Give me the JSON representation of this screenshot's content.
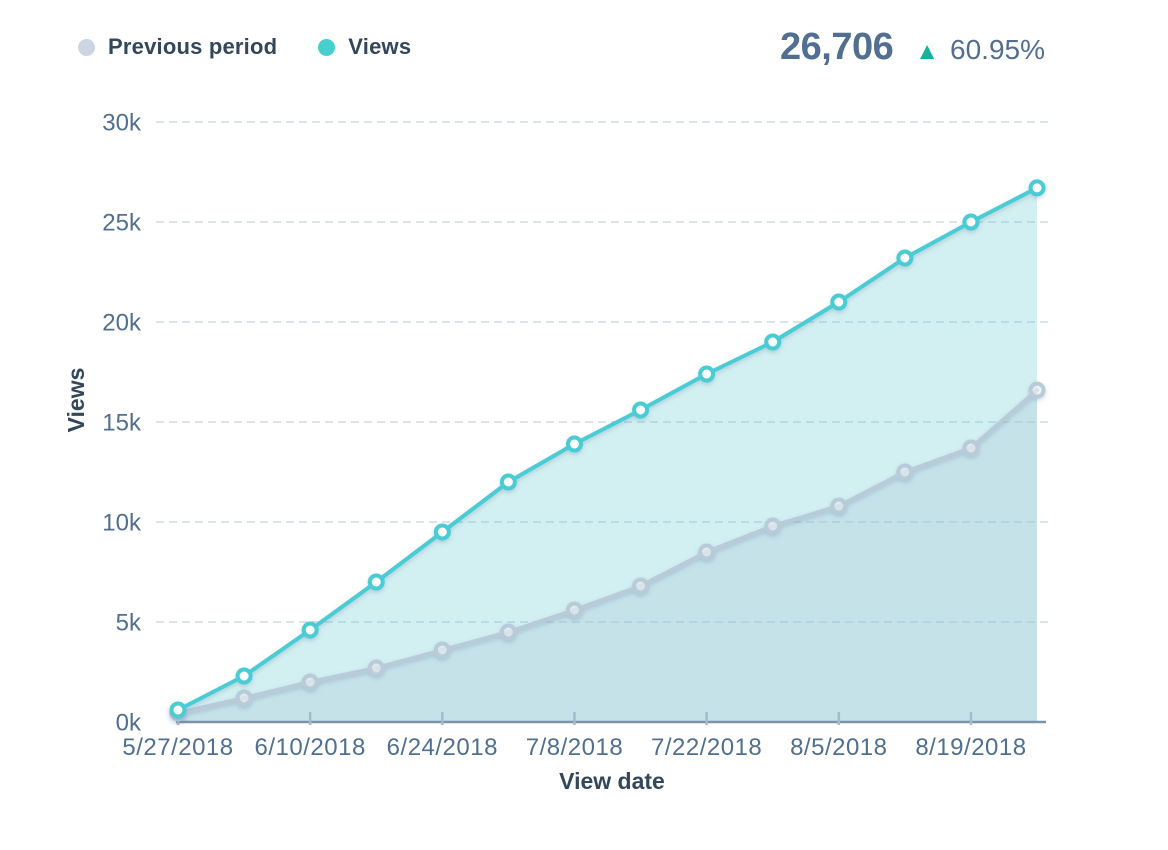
{
  "header": {
    "legend": {
      "items": [
        {
          "label": "Previous period",
          "color": "#cbd6e2"
        },
        {
          "label": "Views",
          "color": "#45cfcf"
        }
      ]
    },
    "stats": {
      "total": "26,706",
      "delta_icon_glyph": "▲",
      "delta": "60.95%"
    }
  },
  "colors": {
    "axis_line": "#7d93ac",
    "tick": "#a4bad0",
    "grid": "#dbe3ec",
    "tick_label": "#516f90",
    "axis_title": "#33475b",
    "legend_text": "#33475b",
    "total_text": "#516f90",
    "delta_text": "#516f90",
    "delta_icon": "#14b29a"
  },
  "chart_data": {
    "type": "area",
    "title": "",
    "xlabel": "View date",
    "ylabel": "Views",
    "x": [
      "5/27/2018",
      "6/3/2018",
      "6/10/2018",
      "6/17/2018",
      "6/24/2018",
      "7/1/2018",
      "7/8/2018",
      "7/15/2018",
      "7/22/2018",
      "7/29/2018",
      "8/5/2018",
      "8/12/2018",
      "8/19/2018",
      "8/26/2018"
    ],
    "x_tick_labels": [
      "5/27/2018",
      "6/10/2018",
      "6/24/2018",
      "7/8/2018",
      "7/22/2018",
      "8/5/2018",
      "8/19/2018"
    ],
    "y_tick_values": [
      0,
      5000,
      10000,
      15000,
      20000,
      25000,
      30000
    ],
    "y_tick_labels": [
      "0k",
      "5k",
      "10k",
      "15k",
      "20k",
      "25k",
      "30k"
    ],
    "ylim": [
      0,
      30000
    ],
    "grid": "horizontal-dashed",
    "legend_position": "top-left",
    "summary": {
      "latest_total": 26706,
      "change_percent": 60.95
    },
    "series": [
      {
        "name": "Previous period",
        "color": "#b8cbd8",
        "area_fill": "rgba(170,200,215,0.32)",
        "marker_fill": "rgba(255,255,255,0.45)",
        "values": [
          450,
          1200,
          2000,
          2700,
          3600,
          4500,
          5600,
          6800,
          8500,
          9800,
          10800,
          12500,
          13700,
          16593
        ]
      },
      {
        "name": "Views",
        "color": "#49ccd4",
        "area_fill": "rgba(94,199,209,0.28)",
        "marker_fill": "#ffffff",
        "values": [
          600,
          2300,
          4600,
          7000,
          9500,
          12000,
          13900,
          15600,
          17400,
          19000,
          21000,
          23200,
          25000,
          26706
        ]
      }
    ]
  }
}
